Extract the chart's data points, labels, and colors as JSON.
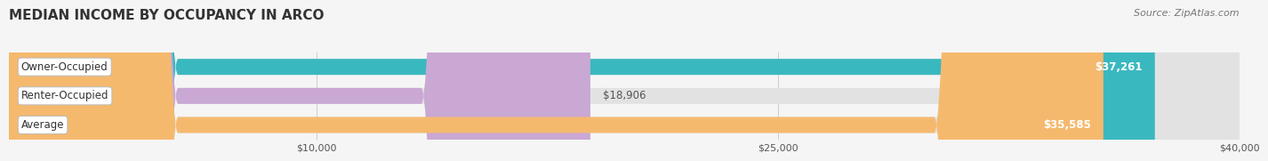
{
  "title": "MEDIAN INCOME BY OCCUPANCY IN ARCO",
  "source": "Source: ZipAtlas.com",
  "categories": [
    "Owner-Occupied",
    "Renter-Occupied",
    "Average"
  ],
  "values": [
    37261,
    18906,
    35585
  ],
  "bar_colors": [
    "#3ab8c0",
    "#c9a8d4",
    "#f5b96e"
  ],
  "value_labels": [
    "$37,261",
    "$18,906",
    "$35,585"
  ],
  "value_inside": [
    true,
    false,
    true
  ],
  "xlim": [
    0,
    40000
  ],
  "xticks": [
    10000,
    25000,
    40000
  ],
  "xtick_labels": [
    "$10,000",
    "$25,000",
    "$40,000"
  ],
  "bar_height": 0.55,
  "background_color": "#f5f5f5",
  "bar_bg_color": "#e2e2e2",
  "title_fontsize": 11,
  "label_fontsize": 8.5,
  "value_fontsize": 8.5,
  "source_fontsize": 8
}
